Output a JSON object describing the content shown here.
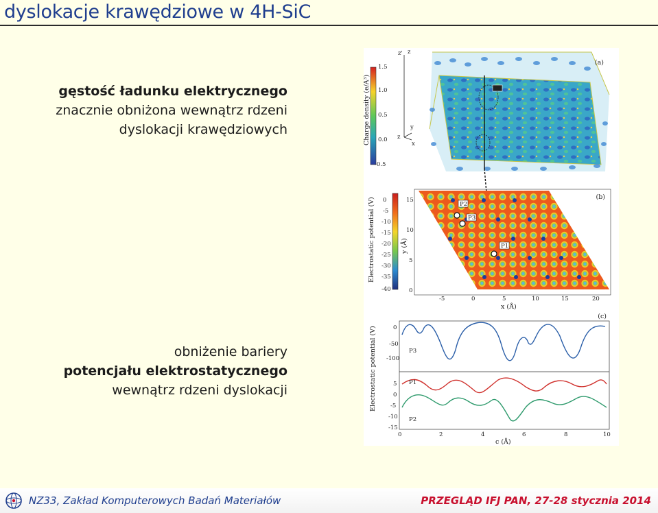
{
  "slide": {
    "title": "dyslokacje krawędziowe w 4H-SiC",
    "block1": {
      "line1": "gęstość ładunku elektrycznego",
      "line2": "znacznie obniżona wewnątrz rdzeni",
      "line3": "dyslokacji krawędziowych"
    },
    "block2": {
      "line1": "obniżenie bariery",
      "line2": "potencjału elektrostatycznego",
      "line3": "wewnątrz rdzeni dyslokacji"
    }
  },
  "figure": {
    "panel_a": {
      "label": "(a)",
      "colorbar_label": "Charge density (e/Å³)",
      "colorbar_ticks": [
        "1.5",
        "1.0",
        "0.5",
        "0.0",
        "-0.5"
      ],
      "axes": [
        "z'",
        "z",
        "y",
        "x",
        "z"
      ]
    },
    "panel_b": {
      "label": "(b)",
      "colorbar_label": "Electrostatic potential (V)",
      "colorbar_ticks": [
        "0",
        "-5",
        "-10",
        "-15",
        "-20",
        "-25",
        "-30",
        "-35",
        "-40"
      ],
      "ylabel": "y (Å)",
      "y_ticks": [
        "15",
        "10",
        "5",
        "0"
      ],
      "xlabel": "x (Å)",
      "x_ticks": [
        "-5",
        "0",
        "5",
        "10",
        "15",
        "20"
      ],
      "points": [
        "P2",
        "P3",
        "P1"
      ]
    },
    "panel_c": {
      "label": "(c)",
      "ylabel": "Electrostatic potential (V)",
      "top_ticks": [
        "0",
        "-50",
        "-100"
      ],
      "bottom_ticks": [
        "5",
        "0",
        "-5",
        "-10",
        "-15"
      ],
      "xlabel": "c (Å)",
      "x_ticks": [
        "0",
        "2",
        "4",
        "6",
        "8",
        "10"
      ],
      "series": [
        "P3",
        "P1",
        "P2"
      ],
      "colors": {
        "P3": "#2a5ea8",
        "P1": "#d0312d",
        "P2": "#2e9a6c"
      }
    }
  },
  "footer": {
    "left": "NZ33, Zakład Komputerowych Badań Materiałów",
    "right": "PRZEGLĄD IFJ PAN,  27-28 stycznia 2014"
  }
}
